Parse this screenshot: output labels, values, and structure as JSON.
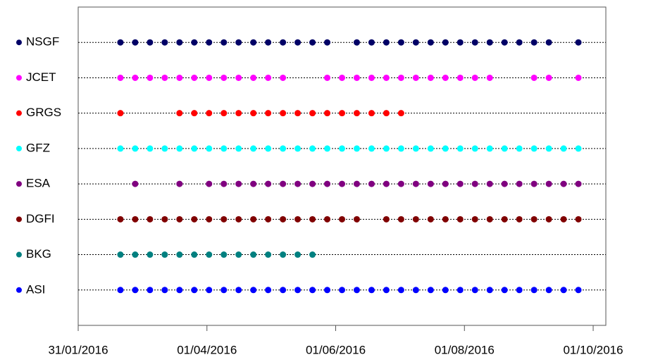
{
  "chart_data": {
    "type": "timeline",
    "xlim": [
      "31/01/2016",
      "07/10/2016"
    ],
    "xticks": [
      "31/01/2016",
      "01/04/2016",
      "01/06/2016",
      "01/08/2016",
      "01/10/2016"
    ],
    "series": [
      {
        "name": "NSGF",
        "color": "#000066",
        "x": [
          "20/02/2016",
          "27/02/2016",
          "05/03/2016",
          "12/03/2016",
          "19/03/2016",
          "26/03/2016",
          "02/04/2016",
          "09/04/2016",
          "16/04/2016",
          "23/04/2016",
          "30/04/2016",
          "07/05/2016",
          "14/05/2016",
          "21/05/2016",
          "28/05/2016",
          "11/06/2016",
          "18/06/2016",
          "25/06/2016",
          "02/07/2016",
          "09/07/2016",
          "16/07/2016",
          "23/07/2016",
          "30/07/2016",
          "06/08/2016",
          "13/08/2016",
          "20/08/2016",
          "27/08/2016",
          "03/09/2016",
          "10/09/2016",
          "24/09/2016"
        ]
      },
      {
        "name": "JCET",
        "color": "#ff00ff",
        "x": [
          "20/02/2016",
          "27/02/2016",
          "05/03/2016",
          "12/03/2016",
          "19/03/2016",
          "26/03/2016",
          "02/04/2016",
          "09/04/2016",
          "16/04/2016",
          "23/04/2016",
          "30/04/2016",
          "07/05/2016",
          "28/05/2016",
          "04/06/2016",
          "11/06/2016",
          "18/06/2016",
          "25/06/2016",
          "02/07/2016",
          "09/07/2016",
          "16/07/2016",
          "23/07/2016",
          "30/07/2016",
          "06/08/2016",
          "13/08/2016",
          "03/09/2016",
          "10/09/2016",
          "24/09/2016"
        ]
      },
      {
        "name": "GRGS",
        "color": "#ff0000",
        "x": [
          "20/02/2016",
          "19/03/2016",
          "26/03/2016",
          "02/04/2016",
          "09/04/2016",
          "16/04/2016",
          "23/04/2016",
          "30/04/2016",
          "07/05/2016",
          "14/05/2016",
          "21/05/2016",
          "28/05/2016",
          "04/06/2016",
          "11/06/2016",
          "18/06/2016",
          "25/06/2016",
          "02/07/2016"
        ]
      },
      {
        "name": "GFZ",
        "color": "#00ffff",
        "x": [
          "20/02/2016",
          "27/02/2016",
          "05/03/2016",
          "12/03/2016",
          "19/03/2016",
          "26/03/2016",
          "02/04/2016",
          "09/04/2016",
          "16/04/2016",
          "23/04/2016",
          "30/04/2016",
          "07/05/2016",
          "14/05/2016",
          "21/05/2016",
          "28/05/2016",
          "04/06/2016",
          "11/06/2016",
          "18/06/2016",
          "25/06/2016",
          "02/07/2016",
          "09/07/2016",
          "16/07/2016",
          "23/07/2016",
          "30/07/2016",
          "06/08/2016",
          "13/08/2016",
          "20/08/2016",
          "27/08/2016",
          "03/09/2016",
          "10/09/2016",
          "17/09/2016",
          "24/09/2016"
        ]
      },
      {
        "name": "ESA",
        "color": "#800080",
        "x": [
          "27/02/2016",
          "19/03/2016",
          "02/04/2016",
          "09/04/2016",
          "16/04/2016",
          "23/04/2016",
          "30/04/2016",
          "07/05/2016",
          "14/05/2016",
          "21/05/2016",
          "28/05/2016",
          "04/06/2016",
          "11/06/2016",
          "18/06/2016",
          "25/06/2016",
          "02/07/2016",
          "09/07/2016",
          "16/07/2016",
          "23/07/2016",
          "30/07/2016",
          "06/08/2016",
          "13/08/2016",
          "20/08/2016",
          "27/08/2016",
          "03/09/2016",
          "10/09/2016",
          "17/09/2016",
          "24/09/2016"
        ]
      },
      {
        "name": "DGFI",
        "color": "#800000",
        "x": [
          "20/02/2016",
          "27/02/2016",
          "05/03/2016",
          "12/03/2016",
          "19/03/2016",
          "26/03/2016",
          "02/04/2016",
          "09/04/2016",
          "16/04/2016",
          "23/04/2016",
          "30/04/2016",
          "07/05/2016",
          "14/05/2016",
          "21/05/2016",
          "28/05/2016",
          "04/06/2016",
          "11/06/2016",
          "25/06/2016",
          "02/07/2016",
          "09/07/2016",
          "16/07/2016",
          "23/07/2016",
          "30/07/2016",
          "06/08/2016",
          "13/08/2016",
          "20/08/2016",
          "27/08/2016",
          "03/09/2016",
          "10/09/2016",
          "17/09/2016",
          "24/09/2016"
        ]
      },
      {
        "name": "BKG",
        "color": "#008080",
        "x": [
          "20/02/2016",
          "27/02/2016",
          "05/03/2016",
          "12/03/2016",
          "19/03/2016",
          "26/03/2016",
          "02/04/2016",
          "09/04/2016",
          "16/04/2016",
          "23/04/2016",
          "30/04/2016",
          "07/05/2016",
          "14/05/2016",
          "21/05/2016"
        ]
      },
      {
        "name": "ASI",
        "color": "#0000ff",
        "x": [
          "20/02/2016",
          "27/02/2016",
          "05/03/2016",
          "12/03/2016",
          "19/03/2016",
          "26/03/2016",
          "02/04/2016",
          "09/04/2016",
          "16/04/2016",
          "23/04/2016",
          "30/04/2016",
          "07/05/2016",
          "14/05/2016",
          "21/05/2016",
          "28/05/2016",
          "04/06/2016",
          "11/06/2016",
          "18/06/2016",
          "25/06/2016",
          "02/07/2016",
          "09/07/2016",
          "16/07/2016",
          "23/07/2016",
          "30/07/2016",
          "06/08/2016",
          "13/08/2016",
          "20/08/2016",
          "27/08/2016",
          "03/09/2016",
          "10/09/2016",
          "17/09/2016",
          "24/09/2016"
        ]
      }
    ]
  }
}
